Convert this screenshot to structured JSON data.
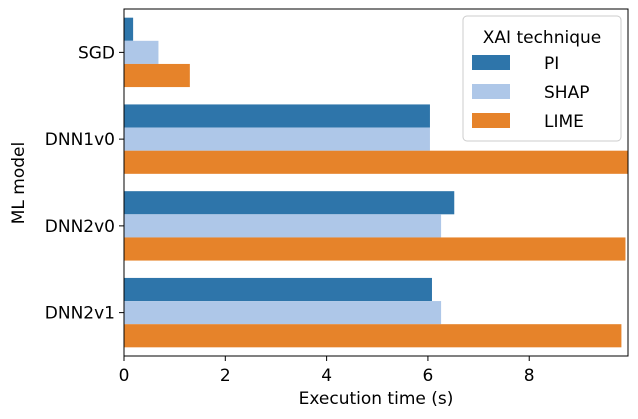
{
  "chart_data": {
    "type": "bar",
    "orientation": "horizontal",
    "categories": [
      "SGD",
      "DNN1v0",
      "DNN2v0",
      "DNN2v1"
    ],
    "series": [
      {
        "name": "PI",
        "color": "#2e75aa",
        "values": [
          0.18,
          6.04,
          6.52,
          6.08
        ]
      },
      {
        "name": "SHAP",
        "color": "#aec7e8",
        "values": [
          0.68,
          6.04,
          6.26,
          6.26
        ]
      },
      {
        "name": "LIME",
        "color": "#e6832a",
        "values": [
          1.3,
          9.95,
          9.9,
          9.82
        ]
      }
    ],
    "xlabel": "Execution time (s)",
    "ylabel": "ML model",
    "xlim": [
      0,
      9.95
    ],
    "xticks": [
      "0",
      "2",
      "4",
      "6",
      "8"
    ],
    "grid": false,
    "legend": {
      "title": "XAI technique",
      "placement": "upper-right"
    }
  }
}
